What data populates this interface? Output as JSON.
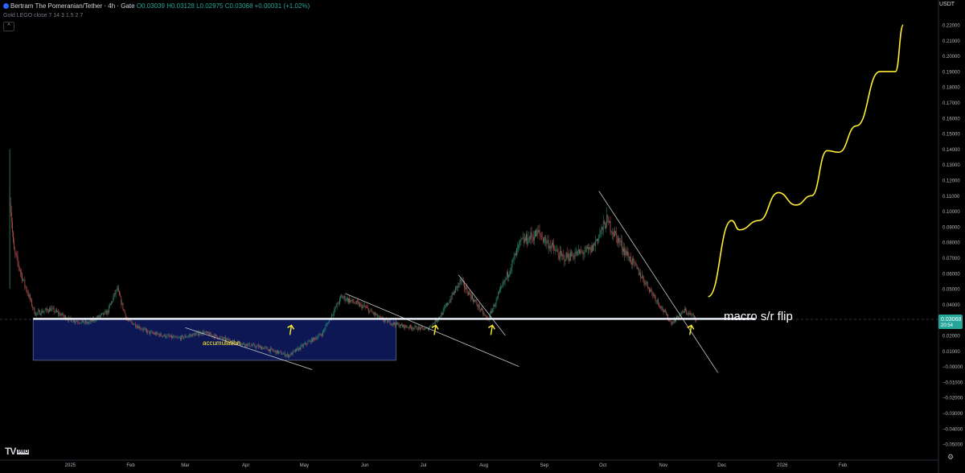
{
  "header": {
    "symbol": "Bertram The Pomeranian/Tether · 4h · Gate",
    "ohlc": "O0.03039 H0.03128 L0.02975 C0.03068 +0.00031 (+1.02%)",
    "indicator": "Gold LEGO close 7 14 3 1.5 2 7",
    "collapse_glyph": "^"
  },
  "price_axis": {
    "unit": "USDT",
    "current_price": "0.03068",
    "countdown": "20:54",
    "settings_icon": "gear-icon"
  },
  "branding": {
    "logo": "TV",
    "badge": "PRO"
  },
  "chart_data": {
    "type": "candlestick",
    "title": "",
    "x_ticks": [
      "2025",
      "Feb",
      "Mar",
      "Apr",
      "May",
      "Jun",
      "Jul",
      "Aug",
      "Sep",
      "Oct",
      "Nov",
      "Dec",
      "2026",
      "Feb"
    ],
    "y_ticks": [
      0.22,
      0.21,
      0.2,
      0.19,
      0.18,
      0.17,
      0.16,
      0.15,
      0.14,
      0.13,
      0.12,
      0.11,
      0.1,
      0.09,
      0.08,
      0.07,
      0.06,
      0.05,
      0.04,
      0.03,
      0.02,
      0.01,
      0.0,
      -0.01,
      -0.02,
      -0.03,
      -0.04,
      -0.05
    ],
    "y_labels": [
      "0.22000",
      "0.21000",
      "0.20000",
      "0.19000",
      "0.18000",
      "0.17000",
      "0.16000",
      "0.15000",
      "0.14000",
      "0.13000",
      "0.12000",
      "0.11000",
      "0.10000",
      "0.09000",
      "0.08000",
      "0.07000",
      "0.06000",
      "0.05000",
      "0.04000",
      "",
      "0.02000",
      "0.01000",
      "−0.00000",
      "−0.01000",
      "−0.02000",
      "−0.03000",
      "−0.04000",
      "−0.05000"
    ],
    "ylim": [
      -0.055,
      0.225
    ],
    "price_path": [
      [
        "2024-12-01",
        0.11
      ],
      [
        "2024-12-03",
        0.075
      ],
      [
        "2024-12-08",
        0.055
      ],
      [
        "2024-12-14",
        0.034
      ],
      [
        "2024-12-22",
        0.037
      ],
      [
        "2025-01-01",
        0.03
      ],
      [
        "2025-01-10",
        0.028
      ],
      [
        "2025-01-20",
        0.035
      ],
      [
        "2025-01-25",
        0.05
      ],
      [
        "2025-01-30",
        0.03
      ],
      [
        "2025-02-10",
        0.022
      ],
      [
        "2025-02-25",
        0.018
      ],
      [
        "2025-03-10",
        0.022
      ],
      [
        "2025-03-25",
        0.016
      ],
      [
        "2025-04-10",
        0.012
      ],
      [
        "2025-04-23",
        0.007
      ],
      [
        "2025-05-01",
        0.014
      ],
      [
        "2025-05-10",
        0.021
      ],
      [
        "2025-05-20",
        0.045
      ],
      [
        "2025-06-01",
        0.038
      ],
      [
        "2025-06-10",
        0.03
      ],
      [
        "2025-06-20",
        0.026
      ],
      [
        "2025-07-03",
        0.024
      ],
      [
        "2025-07-10",
        0.033
      ],
      [
        "2025-07-20",
        0.055
      ],
      [
        "2025-08-03",
        0.03
      ],
      [
        "2025-08-10",
        0.05
      ],
      [
        "2025-08-20",
        0.08
      ],
      [
        "2025-08-29",
        0.086
      ],
      [
        "2025-09-10",
        0.07
      ],
      [
        "2025-09-25",
        0.075
      ],
      [
        "2025-10-03",
        0.094
      ],
      [
        "2025-10-12",
        0.075
      ],
      [
        "2025-10-25",
        0.05
      ],
      [
        "2025-11-05",
        0.028
      ],
      [
        "2025-11-12",
        0.036
      ],
      [
        "2025-11-18",
        0.0307
      ]
    ],
    "projection_path": [
      [
        "2025-11-24",
        0.045
      ],
      [
        "2025-12-06",
        0.094
      ],
      [
        "2025-12-10",
        0.088
      ],
      [
        "2025-12-20",
        0.094
      ],
      [
        "2025-12-30",
        0.112
      ],
      [
        "2026-01-08",
        0.104
      ],
      [
        "2026-01-16",
        0.11
      ],
      [
        "2026-01-24",
        0.139
      ],
      [
        "2026-01-30",
        0.138
      ],
      [
        "2026-02-08",
        0.155
      ],
      [
        "2026-02-20",
        0.19
      ],
      [
        "2026-02-28",
        0.19
      ],
      [
        "2026-03-04",
        0.22
      ]
    ],
    "support_level": 0.0307,
    "accumulation_box": {
      "from": "2024-12-13",
      "to": "2025-06-17",
      "top": 0.031,
      "bottom": 0.004
    },
    "trendlines": [
      {
        "from": [
          "2025-03-01",
          0.025
        ],
        "to": [
          "2025-05-05",
          -0.002
        ]
      },
      {
        "from": [
          "2025-05-22",
          0.047
        ],
        "to": [
          "2025-08-19",
          0.0
        ]
      },
      {
        "from": [
          "2025-07-19",
          0.059
        ],
        "to": [
          "2025-08-12",
          0.02
        ]
      },
      {
        "from": [
          "2025-09-29",
          0.113
        ],
        "to": [
          "2025-11-29",
          -0.004
        ]
      }
    ],
    "arrows": [
      "2025-04-24",
      "2025-07-07",
      "2025-08-05",
      "2025-11-15"
    ],
    "annotations": {
      "accumulation": "accumulation",
      "flip": "macro s/r flip"
    }
  }
}
